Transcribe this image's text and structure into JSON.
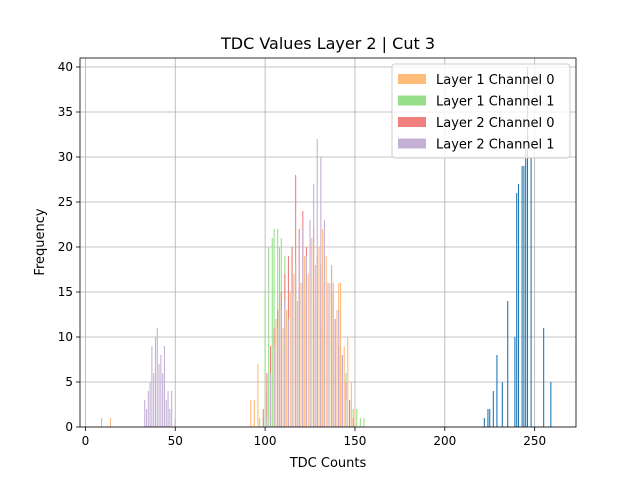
{
  "chart_data": {
    "type": "histogram",
    "title": "TDC Values Layer 2 | Cut 3",
    "xlabel": "TDC Counts",
    "ylabel": "Frequency",
    "xlim": [
      -3,
      273
    ],
    "ylim": [
      0,
      41
    ],
    "xticks": [
      0,
      50,
      100,
      150,
      200,
      250
    ],
    "yticks": [
      0,
      5,
      10,
      15,
      20,
      25,
      30,
      35,
      40
    ],
    "grid": true,
    "legend": {
      "placement": "upper right"
    },
    "bar_width": 0.6,
    "series": [
      {
        "name": "",
        "color": "#1f77b4",
        "x": [
          222,
          224,
          225,
          227,
          229,
          232,
          235,
          239,
          240,
          241,
          243,
          244,
          245,
          246,
          248,
          255,
          259
        ],
        "y": [
          1,
          2,
          2,
          4,
          8,
          5,
          14,
          10,
          26,
          27,
          29,
          29,
          31,
          40,
          30,
          11,
          5
        ]
      },
      {
        "name": "Layer 1 Channel 0",
        "color": "#ffbb78",
        "x": [
          14,
          92,
          94,
          96,
          99,
          101,
          103,
          105,
          106,
          108,
          110,
          112,
          114,
          116,
          118,
          120,
          122,
          124,
          126,
          128,
          130,
          132,
          134,
          136,
          137,
          138,
          140,
          142,
          144,
          146,
          148,
          150
        ],
        "y": [
          1,
          3,
          3,
          7,
          1,
          4,
          8,
          10,
          12,
          14,
          11,
          13,
          15,
          17,
          14,
          16,
          19,
          17,
          21,
          18,
          20,
          22,
          19,
          16,
          17,
          15,
          13,
          16,
          9,
          10,
          5,
          2
        ],
        "stacked_over": [
          {
            "x": 138,
            "y": 16
          },
          {
            "x": 141,
            "y": 16
          }
        ]
      },
      {
        "name": "Layer 1 Channel 1",
        "color": "#98df8a",
        "x": [
          97,
          100,
          102,
          104,
          105,
          107,
          108,
          109,
          111,
          113,
          115,
          117,
          119,
          121,
          123,
          125,
          127,
          129,
          131,
          133,
          135,
          137,
          139,
          141,
          143,
          145,
          147,
          149,
          151,
          153,
          155
        ],
        "y": [
          1,
          15,
          20,
          21,
          22,
          22,
          20,
          21,
          19,
          18,
          20,
          17,
          15,
          16,
          14,
          12,
          13,
          14,
          11,
          10,
          12,
          9,
          8,
          7,
          5,
          6,
          3,
          2,
          2,
          1,
          1
        ]
      },
      {
        "name": "Layer 2 Channel 0",
        "color": "#f08080",
        "x": [
          99,
          101,
          103,
          105,
          107,
          109,
          111,
          113,
          115,
          117,
          119,
          121,
          123,
          125,
          127,
          129,
          131,
          133,
          135,
          137,
          139,
          141,
          143,
          145,
          147,
          149
        ],
        "y": [
          2,
          6,
          9,
          11,
          13,
          15,
          17,
          19,
          20,
          28,
          22,
          24,
          20,
          21,
          22,
          19,
          18,
          16,
          14,
          15,
          12,
          9,
          8,
          5,
          3,
          1
        ]
      },
      {
        "name": "Layer 2 Channel 1",
        "color": "#c5b0d5",
        "x": [
          9,
          33,
          34,
          35,
          36,
          37,
          38,
          39,
          40,
          41,
          42,
          43,
          44,
          45,
          46,
          47,
          48,
          50,
          101,
          103,
          105,
          107,
          109,
          111,
          113,
          115,
          117,
          119,
          121,
          123,
          125,
          127,
          129,
          131,
          133,
          135,
          137,
          139,
          141,
          143,
          145
        ],
        "y": [
          1,
          3,
          2,
          4,
          5,
          9,
          6,
          10,
          11,
          7,
          8,
          6,
          9,
          3,
          4,
          2,
          4,
          1,
          1,
          6,
          9,
          11,
          13,
          14,
          12,
          15,
          18,
          21,
          22,
          19,
          23,
          27,
          32,
          30,
          23,
          16,
          18,
          12,
          13,
          8,
          3
        ]
      }
    ]
  }
}
